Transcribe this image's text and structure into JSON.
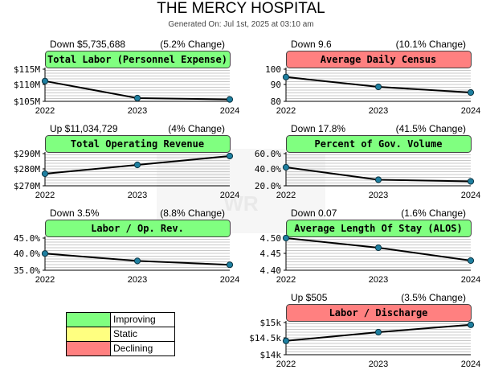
{
  "header": {
    "title": "THE MERCY HOSPITAL",
    "subtitle": "Generated On: Jul 1st, 2025 at 03:10 am"
  },
  "colors": {
    "improving": "#80ff80",
    "static": "#ffff80",
    "declining": "#ff8080"
  },
  "legend": {
    "items": [
      {
        "label": "Improving",
        "color": "#80ff80"
      },
      {
        "label": "Static",
        "color": "#ffff80"
      },
      {
        "label": "Declining",
        "color": "#ff8080"
      }
    ]
  },
  "chart_data": [
    {
      "type": "line",
      "title": "Total Labor (Personnel Expense)",
      "status": "improving",
      "change_left": "Down $5,735,688",
      "change_right": "(5.2% Change)",
      "x": [
        "2022",
        "2023",
        "2024"
      ],
      "values": [
        111.3,
        106.0,
        105.6
      ],
      "yticks": [
        "$115M",
        "$110M",
        "$105M"
      ],
      "ylim": [
        105,
        115
      ],
      "xlabel": "",
      "ylabel": "",
      "grid": true
    },
    {
      "type": "line",
      "title": "Average Daily Census",
      "status": "declining",
      "change_left": "Down 9.6",
      "change_right": "(10.1% Change)",
      "x": [
        "2022",
        "2023",
        "2024"
      ],
      "values": [
        95.1,
        89.0,
        85.5
      ],
      "yticks": [
        "100",
        "90",
        "80"
      ],
      "ylim": [
        80,
        100
      ],
      "xlabel": "",
      "ylabel": "",
      "grid": true
    },
    {
      "type": "line",
      "title": "Total Operating Revenue",
      "status": "improving",
      "change_left": "Up $11,034,729",
      "change_right": "(4% Change)",
      "x": [
        "2022",
        "2023",
        "2024"
      ],
      "values": [
        277.5,
        283.0,
        288.5
      ],
      "yticks": [
        "$290M",
        "$280M",
        "$270M"
      ],
      "ylim": [
        270,
        290
      ],
      "xlabel": "",
      "ylabel": "",
      "grid": true
    },
    {
      "type": "line",
      "title": "Percent of Gov. Volume",
      "status": "improving",
      "change_left": "Down 17.8%",
      "change_right": "(41.5% Change)",
      "x": [
        "2022",
        "2023",
        "2024"
      ],
      "values": [
        43.0,
        27.5,
        25.5
      ],
      "yticks": [
        "60.0%",
        "40.0%",
        "20.0%"
      ],
      "ylim": [
        20,
        60
      ],
      "xlabel": "",
      "ylabel": "",
      "grid": true
    },
    {
      "type": "line",
      "title": "Labor / Op. Rev.",
      "status": "improving",
      "change_left": "Down 3.5%",
      "change_right": "(8.8% Change)",
      "x": [
        "2022",
        "2023",
        "2024"
      ],
      "values": [
        40.2,
        37.9,
        36.7
      ],
      "yticks": [
        "45.0%",
        "40.0%",
        "35.0%"
      ],
      "ylim": [
        35,
        45
      ],
      "xlabel": "",
      "ylabel": "",
      "grid": true
    },
    {
      "type": "line",
      "title": "Average Length Of Stay (ALOS)",
      "status": "improving",
      "change_left": "Down 0.07",
      "change_right": "(1.6% Change)",
      "x": [
        "2022",
        "2023",
        "2024"
      ],
      "values": [
        4.5,
        4.47,
        4.43
      ],
      "yticks": [
        "4.50",
        "4.45",
        "4.40"
      ],
      "ylim": [
        4.4,
        4.5
      ],
      "xlabel": "",
      "ylabel": "",
      "grid": true
    },
    {
      "type": "line",
      "title": "Labor / Discharge",
      "status": "declining",
      "change_left": "Up $505",
      "change_right": "(3.5% Change)",
      "x": [
        "2022",
        "2023",
        "2024"
      ],
      "values": [
        14.43,
        14.7,
        14.93
      ],
      "yticks": [
        "$15k",
        "$14.5k",
        "$14k"
      ],
      "ylim": [
        14,
        15
      ],
      "xlabel": "",
      "ylabel": "",
      "grid": true
    }
  ]
}
